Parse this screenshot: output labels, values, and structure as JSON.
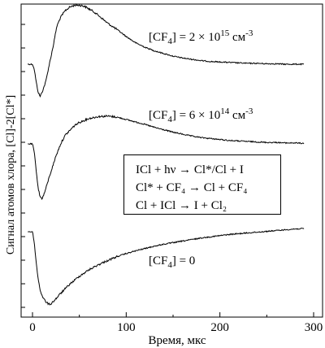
{
  "chart_data": {
    "type": "line",
    "title": "",
    "xlabel": "Время, мкс",
    "ylabel": "Сигнал атомов хлора, [Cl]-2[Cl*]",
    "xlim": [
      -10,
      310
    ],
    "xticks": [
      0,
      100,
      200,
      300
    ],
    "grid": false,
    "legend": "none",
    "series": [
      {
        "name": "[CF4] = 2 × 10^15 см^-3",
        "x": [
          -5,
          0,
          2,
          4,
          6,
          8,
          10,
          14,
          18,
          22,
          26,
          30,
          35,
          40,
          45,
          50,
          55,
          60,
          65,
          70,
          80,
          90,
          100,
          110,
          120,
          130,
          140,
          150,
          160,
          170,
          180,
          190,
          200,
          210,
          220,
          230,
          240,
          250,
          260,
          270,
          280,
          290
        ],
        "y": [
          0.0,
          0.0,
          -0.12,
          -0.4,
          -0.62,
          -0.72,
          -0.64,
          -0.4,
          0.0,
          0.4,
          0.85,
          1.05,
          1.2,
          1.28,
          1.32,
          1.32,
          1.3,
          1.24,
          1.18,
          1.1,
          0.92,
          0.78,
          0.62,
          0.48,
          0.38,
          0.3,
          0.24,
          0.18,
          0.14,
          0.11,
          0.08,
          0.06,
          0.05,
          0.04,
          0.03,
          0.02,
          0.02,
          0.01,
          0.01,
          0.0,
          0.0,
          0.0
        ]
      },
      {
        "name": "[CF4] = 6 × 10^14 см^-3",
        "x": [
          -5,
          0,
          2,
          4,
          6,
          8,
          10,
          12,
          16,
          20,
          25,
          30,
          35,
          40,
          45,
          50,
          60,
          70,
          80,
          90,
          100,
          110,
          120,
          130,
          140,
          150,
          160,
          170,
          180,
          190,
          200,
          210,
          220,
          230,
          240,
          250,
          260,
          270,
          280,
          290
        ],
        "y": [
          0.0,
          0.0,
          -0.18,
          -0.55,
          -0.9,
          -1.08,
          -1.12,
          -1.05,
          -0.8,
          -0.55,
          -0.25,
          0.0,
          0.18,
          0.28,
          0.38,
          0.44,
          0.52,
          0.56,
          0.57,
          0.55,
          0.5,
          0.45,
          0.4,
          0.34,
          0.29,
          0.24,
          0.2,
          0.16,
          0.13,
          0.11,
          0.09,
          0.07,
          0.06,
          0.05,
          0.04,
          0.03,
          0.03,
          0.02,
          0.02,
          0.01
        ]
      },
      {
        "name": "[CF4] = 0",
        "x": [
          -5,
          0,
          2,
          4,
          6,
          8,
          10,
          12,
          15,
          18,
          20,
          25,
          30,
          40,
          50,
          60,
          70,
          80,
          90,
          100,
          110,
          120,
          130,
          140,
          150,
          160,
          170,
          180,
          190,
          200,
          210,
          220,
          230,
          240,
          250,
          260,
          270,
          280,
          290
        ],
        "y": [
          0.0,
          0.0,
          -0.3,
          -0.8,
          -1.2,
          -1.48,
          -1.62,
          -1.72,
          -1.82,
          -1.86,
          -1.84,
          -1.72,
          -1.58,
          -1.34,
          -1.14,
          -0.98,
          -0.85,
          -0.74,
          -0.64,
          -0.56,
          -0.49,
          -0.43,
          -0.37,
          -0.32,
          -0.28,
          -0.24,
          -0.2,
          -0.16,
          -0.13,
          -0.1,
          -0.07,
          -0.05,
          -0.03,
          -0.01,
          0.01,
          0.03,
          0.05,
          0.07,
          0.08
        ]
      }
    ]
  },
  "annotations": {
    "curve1_prefix": "[CF",
    "curve1_sub": "4",
    "curve1_mid": "] = 2 × 10",
    "curve1_exp": "15",
    "curve1_unit": " см",
    "curve1_unit_exp": "-3",
    "curve2_prefix": "[CF",
    "curve2_sub": "4",
    "curve2_mid": "] = 6 × 10",
    "curve2_exp": "14",
    "curve2_unit": " см",
    "curve2_unit_exp": "-3",
    "curve3_prefix": "[CF",
    "curve3_sub": "4",
    "curve3_mid": "] = 0"
  },
  "reactions": {
    "r1": "ICl + hν → Cl*/Cl + I",
    "r2": "Cl* + CF₄ → Cl + CF₄",
    "r3": "Cl + ICl → I + Cl₂"
  }
}
